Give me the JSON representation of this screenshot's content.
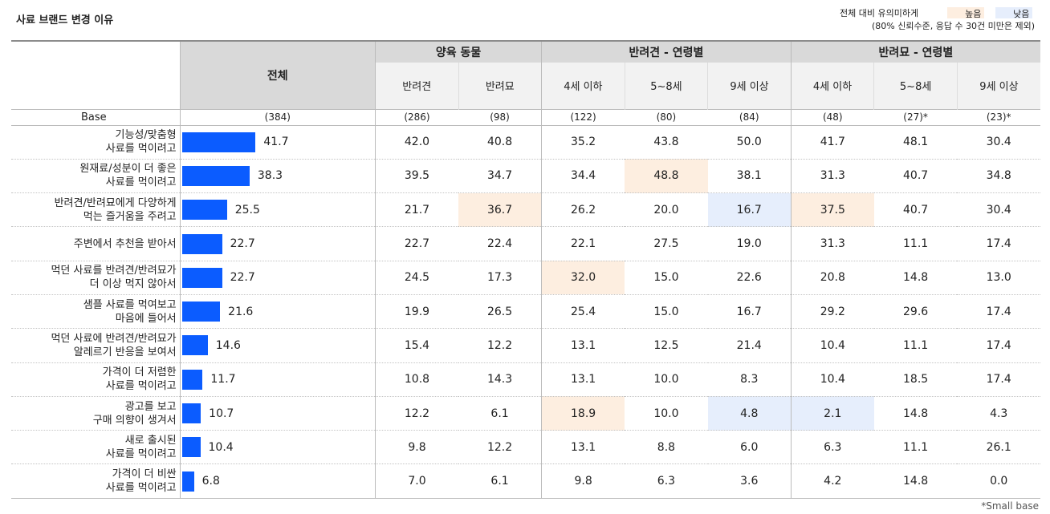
{
  "title": "사료 브랜드 변경 이유",
  "legend": {
    "label": "전체 대비 유의미하게",
    "high": "높음",
    "low": "낮음",
    "note": "(80% 신뢰수준, 응답 수 30건 미만은 제외)",
    "colors": {
      "high": "#fdeee0",
      "low": "#e6eefc",
      "bar": "#0b5cff"
    }
  },
  "headers": {
    "total": "전체",
    "groups": [
      "양육 동물",
      "반려견 - 연령별",
      "반려묘 - 연령별"
    ],
    "subs": [
      "반려견",
      "반려묘",
      "4세 이하",
      "5~8세",
      "9세 이상",
      "4세 이하",
      "5~8세",
      "9세 이상"
    ]
  },
  "base": {
    "label": "Base",
    "values": [
      "(384)",
      "(286)",
      "(98)",
      "(122)",
      "(80)",
      "(84)",
      "(48)",
      "(27)*",
      "(23)*"
    ]
  },
  "footnote": "*Small base",
  "chart_data": {
    "type": "table",
    "bar_max": 100,
    "rows": [
      {
        "label": "기능성/맞춤형\n사료를 먹이려고",
        "total": "41.7",
        "cells": [
          "42.0",
          "40.8",
          "35.2",
          "43.8",
          "50.0",
          "41.7",
          "48.1",
          "30.4"
        ],
        "flags": [
          "",
          "",
          "",
          "",
          "",
          "",
          "",
          ""
        ]
      },
      {
        "label": "원재료/성분이 더 좋은\n사료를 먹이려고",
        "total": "38.3",
        "cells": [
          "39.5",
          "34.7",
          "34.4",
          "48.8",
          "38.1",
          "31.3",
          "40.7",
          "34.8"
        ],
        "flags": [
          "",
          "",
          "",
          "high",
          "",
          "",
          "",
          ""
        ]
      },
      {
        "label": "반려견/반려묘에게 다양하게\n먹는 즐거움을 주려고",
        "total": "25.5",
        "cells": [
          "21.7",
          "36.7",
          "26.2",
          "20.0",
          "16.7",
          "37.5",
          "40.7",
          "30.4"
        ],
        "flags": [
          "",
          "high",
          "",
          "",
          "low",
          "high",
          "",
          ""
        ]
      },
      {
        "label": "주변에서 추천을 받아서",
        "total": "22.7",
        "cells": [
          "22.7",
          "22.4",
          "22.1",
          "27.5",
          "19.0",
          "31.3",
          "11.1",
          "17.4"
        ],
        "flags": [
          "",
          "",
          "",
          "",
          "",
          "",
          "",
          ""
        ]
      },
      {
        "label": "먹던 사료를 반려견/반려묘가\n더 이상 먹지 않아서",
        "total": "22.7",
        "cells": [
          "24.5",
          "17.3",
          "32.0",
          "15.0",
          "22.6",
          "20.8",
          "14.8",
          "13.0"
        ],
        "flags": [
          "",
          "",
          "high",
          "",
          "",
          "",
          "",
          ""
        ]
      },
      {
        "label": "샘플 사료를 먹여보고\n마음에 들어서",
        "total": "21.6",
        "cells": [
          "19.9",
          "26.5",
          "25.4",
          "15.0",
          "16.7",
          "29.2",
          "29.6",
          "17.4"
        ],
        "flags": [
          "",
          "",
          "",
          "",
          "",
          "",
          "",
          ""
        ]
      },
      {
        "label": "먹던 사료에 반려견/반려묘가\n알레르기 반응을 보여서",
        "total": "14.6",
        "cells": [
          "15.4",
          "12.2",
          "13.1",
          "12.5",
          "21.4",
          "10.4",
          "11.1",
          "17.4"
        ],
        "flags": [
          "",
          "",
          "",
          "",
          "",
          "",
          "",
          ""
        ]
      },
      {
        "label": "가격이 더 저렴한\n사료를 먹이려고",
        "total": "11.7",
        "cells": [
          "10.8",
          "14.3",
          "13.1",
          "10.0",
          "8.3",
          "10.4",
          "18.5",
          "17.4"
        ],
        "flags": [
          "",
          "",
          "",
          "",
          "",
          "",
          "",
          ""
        ]
      },
      {
        "label": "광고를 보고\n구매 의향이 생겨서",
        "total": "10.7",
        "cells": [
          "12.2",
          "6.1",
          "18.9",
          "10.0",
          "4.8",
          "2.1",
          "14.8",
          "4.3"
        ],
        "flags": [
          "",
          "",
          "high",
          "",
          "low",
          "low",
          "",
          ""
        ]
      },
      {
        "label": "새로 출시된\n사료를 먹이려고",
        "total": "10.4",
        "cells": [
          "9.8",
          "12.2",
          "13.1",
          "8.8",
          "6.0",
          "6.3",
          "11.1",
          "26.1"
        ],
        "flags": [
          "",
          "",
          "",
          "",
          "",
          "",
          "",
          ""
        ]
      },
      {
        "label": "가격이 더 비싼\n사료를 먹이려고",
        "total": "6.8",
        "cells": [
          "7.0",
          "6.1",
          "9.8",
          "6.3",
          "3.6",
          "4.2",
          "14.8",
          "0.0"
        ],
        "flags": [
          "",
          "",
          "",
          "",
          "",
          "",
          "",
          ""
        ]
      }
    ]
  }
}
